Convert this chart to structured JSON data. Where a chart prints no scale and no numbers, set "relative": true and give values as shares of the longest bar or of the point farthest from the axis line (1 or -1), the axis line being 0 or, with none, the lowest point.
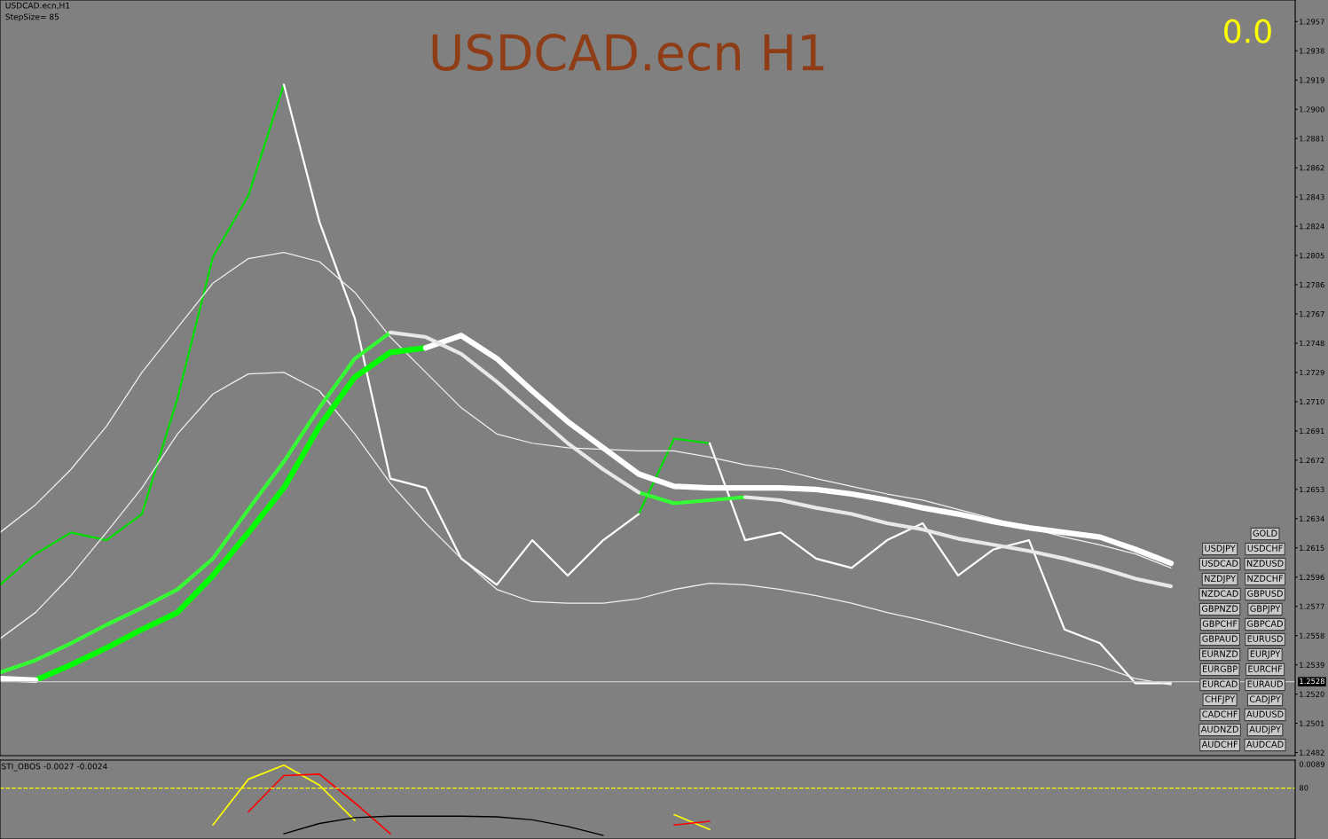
{
  "chart_data": [
    {
      "type": "line",
      "title": "USDCAD.ecn H1",
      "categories": [
        null,
        null,
        null,
        null,
        null,
        null,
        null,
        null,
        null,
        null,
        null,
        null,
        null,
        null,
        null,
        null,
        null,
        null,
        null,
        null,
        null,
        null,
        null,
        null,
        null,
        null,
        null,
        null,
        null,
        null,
        null,
        null,
        null,
        null
      ],
      "series": [
        {
          "color": "#00e000",
          "values": [
            1.2591,
            1.2611,
            1.2625,
            1.262,
            1.2637,
            1.2712,
            1.2804,
            1.2844,
            1.2916,
            null,
            null,
            null,
            null,
            null,
            null,
            null,
            null,
            null,
            1.2637,
            1.2686,
            1.2683,
            null,
            null,
            null,
            null,
            null,
            null,
            null,
            null,
            null,
            null,
            null,
            null,
            null
          ]
        },
        {
          "color": "#ffffff",
          "values": [
            null,
            null,
            null,
            null,
            null,
            null,
            null,
            null,
            1.2916,
            1.2827,
            1.2764,
            1.266,
            1.2654,
            1.2608,
            1.2591,
            1.262,
            1.2597,
            1.262,
            1.2637,
            null,
            1.2683,
            1.262,
            1.2625,
            1.2608,
            1.2602,
            1.262,
            1.2631,
            1.2597,
            1.2614,
            1.262,
            1.2562,
            1.2553,
            1.2527,
            1.2527
          ]
        },
        {
          "color": "#f0f0f0",
          "values": [
            1.2625,
            1.2643,
            1.2666,
            1.2694,
            1.2729,
            1.2758,
            1.2787,
            1.2803,
            1.2807,
            1.2801,
            1.2781,
            1.2752,
            1.2729,
            1.2706,
            1.2689,
            1.2683,
            1.268,
            1.2679,
            1.2678,
            1.2678,
            1.2674,
            1.2669,
            1.2666,
            1.266,
            1.2655,
            1.265,
            1.2646,
            1.264,
            1.2634,
            1.2628,
            1.2622,
            1.2617,
            1.2611,
            1.2602
          ]
        },
        {
          "color": "#f0f0f0",
          "values": [
            1.2556,
            1.2573,
            1.2597,
            1.2625,
            1.2654,
            1.2689,
            1.2715,
            1.2728,
            1.2729,
            1.2717,
            1.2689,
            1.2657,
            1.2631,
            1.2608,
            1.2588,
            1.258,
            1.2579,
            1.2579,
            1.2582,
            1.2588,
            1.2592,
            1.2591,
            1.2588,
            1.2584,
            1.2579,
            1.2573,
            1.2568,
            1.2562,
            1.2556,
            1.255,
            1.2544,
            1.2538,
            1.253,
            1.2526
          ]
        },
        {
          "color": "#00ff00",
          "values": [
            null,
            1.2529,
            1.2539,
            1.255,
            1.2562,
            1.2573,
            1.2597,
            1.2625,
            1.2654,
            1.2694,
            1.2726,
            1.2742,
            1.2745,
            null,
            null,
            null,
            null,
            null,
            null,
            null,
            null,
            null,
            null,
            null,
            null,
            null,
            null,
            null,
            null,
            null,
            null,
            null,
            null,
            null
          ]
        },
        {
          "color": "#ffffff",
          "values": [
            1.253,
            1.2529,
            null,
            null,
            null,
            null,
            null,
            null,
            null,
            null,
            null,
            null,
            1.2745,
            1.2753,
            1.2738,
            1.2717,
            1.2697,
            1.268,
            1.2663,
            1.2655,
            1.2654,
            1.2654,
            1.2654,
            1.2653,
            1.265,
            1.2646,
            1.2641,
            1.2637,
            1.2632,
            1.2628,
            1.2625,
            1.2622,
            1.2614,
            1.2605
          ]
        },
        {
          "color": "#33ff33",
          "values": [
            1.2534,
            1.2542,
            1.2553,
            1.2565,
            1.2576,
            1.2588,
            1.2608,
            1.264,
            1.2671,
            1.2706,
            1.2738,
            1.2755,
            null,
            null,
            null,
            null,
            null,
            null,
            1.2651,
            1.2644,
            1.2646,
            1.2648,
            null,
            null,
            null,
            null,
            null,
            null,
            null,
            null,
            null,
            null,
            null,
            null
          ]
        },
        {
          "color": "#e8e8e8",
          "values": [
            null,
            null,
            null,
            null,
            null,
            null,
            null,
            null,
            null,
            null,
            null,
            1.2755,
            1.2752,
            1.2741,
            1.2723,
            1.2703,
            1.2683,
            1.2666,
            1.2651,
            null,
            null,
            1.2648,
            1.2646,
            1.2641,
            1.2637,
            1.2631,
            1.2627,
            1.2621,
            1.2617,
            1.2613,
            1.2608,
            1.2602,
            1.2595,
            1.259
          ]
        }
      ],
      "ylim": [
        1.248,
        1.2971
      ],
      "yticks": [
        1.2482,
        1.2501,
        {
          "value": 1.252,
          "label": "1.2520"
        },
        1.2539,
        1.2558,
        1.2577,
        1.2596,
        1.2615,
        1.2634,
        1.2653,
        1.2672,
        1.2691,
        {
          "value": 1.271,
          "label": "1.2710"
        },
        1.2729,
        1.2748,
        1.2767,
        1.2786,
        1.2805,
        1.2824,
        1.2843,
        1.2862,
        1.2881,
        {
          "value": 1.29,
          "label": "1.2900"
        },
        1.2919,
        1.2938,
        1.2957
      ],
      "ref_lines": [
        {
          "axis": "y",
          "value": 1.2528,
          "label": "1.2528",
          "color": "#c8c8c8"
        }
      ],
      "annotations": [
        "USDCAD.ecn,H1",
        "StepSize= 85",
        "0.0",
        "GOLD",
        "USDJPY",
        "USDCHF",
        "USDCAD",
        "NZDUSD",
        "NZDJPY",
        "NZDCHF",
        "NZDCAD",
        "GBPUSD",
        "GBPNZD",
        "GBPJPY",
        "GBPCHF",
        "GBPCAD",
        "GBPAUD",
        "EURUSD",
        "EURNZD",
        "EURJPY",
        "EURGBP",
        "EURCHF",
        "EURCAD",
        "EURAUD",
        "CHFJPY",
        "CADJPY",
        "CADCHF",
        "AUDUSD",
        "AUDNZD",
        "AUDJPY",
        "AUDCHF",
        "AUDCAD"
      ]
    },
    {
      "type": "line",
      "title": "STI_OBOS -0.0027 -0.0024",
      "relative": true,
      "categories": [
        null,
        null,
        null,
        null,
        null,
        null,
        null,
        null,
        null,
        null,
        null,
        null,
        null,
        null,
        null,
        null,
        null,
        null,
        null,
        null,
        null,
        null,
        null,
        null,
        null,
        null,
        null,
        null,
        null,
        null,
        null,
        null,
        null,
        null
      ],
      "series": [
        {
          "color": "#ffff00",
          "values": [
            null,
            null,
            null,
            null,
            null,
            null,
            0.19,
            0.81,
            1.0,
            0.73,
            0.25,
            null,
            null,
            null,
            null,
            null,
            null,
            null,
            null,
            0.33,
            0.13,
            null,
            null,
            null,
            null,
            null,
            null,
            null,
            null,
            null,
            null,
            null,
            null,
            null
          ]
        },
        {
          "color": "#ff0000",
          "values": [
            null,
            null,
            null,
            null,
            null,
            null,
            null,
            0.37,
            0.86,
            0.88,
            0.49,
            0.07,
            null,
            null,
            null,
            null,
            null,
            null,
            null,
            0.19,
            0.24,
            null,
            null,
            null,
            null,
            null,
            null,
            null,
            null,
            null,
            null,
            null,
            null,
            null
          ]
        },
        {
          "color": "#000000",
          "values": [
            null,
            null,
            null,
            null,
            null,
            null,
            null,
            null,
            0.07,
            0.21,
            0.29,
            0.31,
            0.31,
            0.31,
            0.3,
            0.26,
            0.17,
            0.05,
            null,
            null,
            null,
            null,
            null,
            null,
            null,
            null,
            null,
            null,
            null,
            null,
            null,
            null,
            null,
            null
          ]
        }
      ],
      "ref_lines": [
        {
          "axis": "y",
          "value": 0.69,
          "color": "#ffff00",
          "line_style": "dashed"
        }
      ],
      "annotations": [
        "0.0089",
        "80"
      ]
    }
  ]
}
